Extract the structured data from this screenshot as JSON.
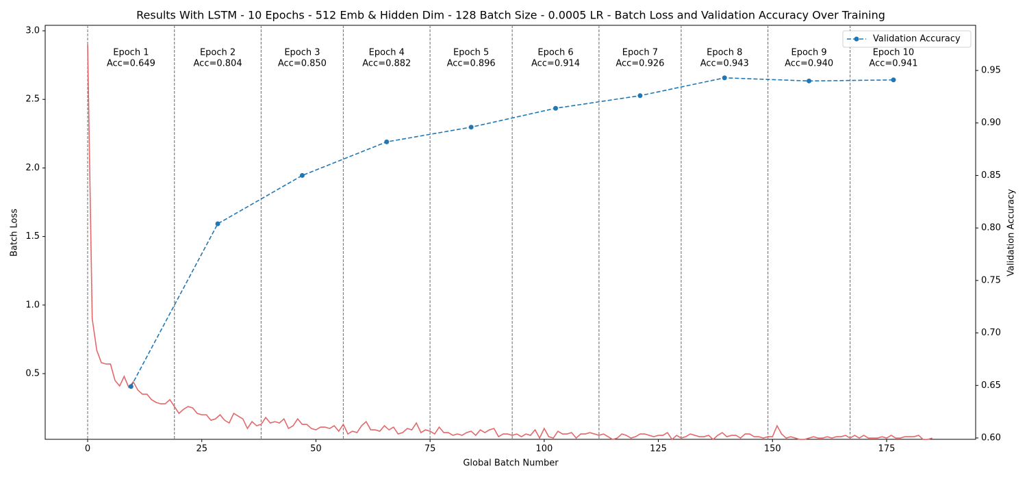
{
  "chart_data": {
    "type": "line",
    "title": "Results With LSTM - 10 Epochs - 512 Emb & Hidden Dim - 128 Batch Size - 0.0005 LR - Batch Loss and Validation Accuracy Over Training",
    "x_label": "Global Batch Number",
    "y_label": "Batch Loss",
    "y2_label": "Validation Accuracy",
    "y_label_color": "#d62728",
    "y2_label_color": "#1f77b4",
    "xlim": [
      -9.3,
      194.5
    ],
    "xticks": [
      0,
      25,
      50,
      75,
      100,
      125,
      150,
      175
    ],
    "ylim": [
      0.021,
      3.04
    ],
    "yticks": [
      0.5,
      1.0,
      1.5,
      2.0,
      2.5,
      3.0
    ],
    "y2lim": [
      0.5987,
      0.993
    ],
    "y2ticks": [
      0.6,
      0.65,
      0.7,
      0.75,
      0.8,
      0.85,
      0.9,
      0.95
    ],
    "legend": "upper right",
    "epoch_boundaries": [
      0,
      19,
      38,
      56,
      75,
      93,
      112,
      130,
      149,
      167
    ],
    "annotations": [
      [
        "Epoch 1",
        "Acc=0.649"
      ],
      [
        "Epoch 2",
        "Acc=0.804"
      ],
      [
        "Epoch 3",
        "Acc=0.850"
      ],
      [
        "Epoch 4",
        "Acc=0.882"
      ],
      [
        "Epoch 5",
        "Acc=0.896"
      ],
      [
        "Epoch 6",
        "Acc=0.914"
      ],
      [
        "Epoch 7",
        "Acc=0.926"
      ],
      [
        "Epoch 8",
        "Acc=0.943"
      ],
      [
        "Epoch 9",
        "Acc=0.940"
      ],
      [
        "Epoch 10",
        "Acc=0.941"
      ]
    ],
    "series": [
      {
        "color": "#e26869",
        "axis": "y",
        "x": [
          0,
          1,
          2,
          3,
          4,
          5,
          6,
          7,
          8,
          9,
          10,
          11,
          12,
          13,
          14,
          15,
          16,
          17,
          18,
          19,
          20,
          21,
          22,
          23,
          24,
          25,
          26,
          27,
          28,
          29,
          30,
          31,
          32,
          33,
          34,
          35,
          36,
          37,
          38,
          39,
          40,
          41,
          42,
          43,
          44,
          45,
          46,
          47,
          48,
          49,
          50,
          51,
          52,
          53,
          54,
          55,
          56,
          57,
          58,
          59,
          60,
          61,
          62,
          63,
          64,
          65,
          66,
          67,
          68,
          69,
          70,
          71,
          72,
          73,
          74,
          75,
          76,
          77,
          78,
          79,
          80,
          81,
          82,
          83,
          84,
          85,
          86,
          87,
          88,
          89,
          90,
          91,
          92,
          93,
          94,
          95,
          96,
          97,
          98,
          99,
          100,
          101,
          102,
          103,
          104,
          105,
          106,
          107,
          108,
          109,
          110,
          111,
          112,
          113,
          114,
          115,
          116,
          117,
          118,
          119,
          120,
          121,
          122,
          123,
          124,
          125,
          126,
          127,
          128,
          129,
          130,
          131,
          132,
          133,
          134,
          135,
          136,
          137,
          138,
          139,
          140,
          141,
          142,
          143,
          144,
          145,
          146,
          147,
          148,
          149,
          150,
          151,
          152,
          153,
          154,
          155,
          156,
          157,
          158,
          159,
          160,
          161,
          162,
          163,
          164,
          165,
          166,
          167,
          168,
          169,
          170,
          171,
          172,
          173,
          174,
          175,
          176,
          177,
          178,
          179,
          180,
          181,
          182,
          183,
          184,
          185
        ],
        "values": [
          2.9,
          0.9,
          0.67,
          0.58,
          0.57,
          0.57,
          0.45,
          0.41,
          0.48,
          0.4,
          0.44,
          0.38,
          0.35,
          0.35,
          0.31,
          0.29,
          0.28,
          0.28,
          0.31,
          0.26,
          0.21,
          0.24,
          0.26,
          0.25,
          0.21,
          0.2,
          0.2,
          0.16,
          0.17,
          0.2,
          0.16,
          0.14,
          0.21,
          0.19,
          0.17,
          0.1,
          0.15,
          0.12,
          0.13,
          0.18,
          0.14,
          0.15,
          0.14,
          0.17,
          0.1,
          0.12,
          0.17,
          0.13,
          0.13,
          0.1,
          0.09,
          0.11,
          0.11,
          0.1,
          0.12,
          0.08,
          0.13,
          0.06,
          0.08,
          0.07,
          0.12,
          0.15,
          0.09,
          0.09,
          0.08,
          0.12,
          0.09,
          0.11,
          0.06,
          0.07,
          0.1,
          0.09,
          0.14,
          0.07,
          0.09,
          0.08,
          0.06,
          0.11,
          0.07,
          0.07,
          0.05,
          0.06,
          0.05,
          0.07,
          0.08,
          0.05,
          0.09,
          0.07,
          0.09,
          0.1,
          0.04,
          0.06,
          0.06,
          0.05,
          0.06,
          0.04,
          0.06,
          0.05,
          0.09,
          0.03,
          0.1,
          0.04,
          0.03,
          0.08,
          0.06,
          0.06,
          0.07,
          0.03,
          0.06,
          0.06,
          0.07,
          0.06,
          0.05,
          0.06,
          0.04,
          0.02,
          0.03,
          0.06,
          0.05,
          0.03,
          0.04,
          0.06,
          0.06,
          0.05,
          0.04,
          0.05,
          0.05,
          0.07,
          0.02,
          0.05,
          0.03,
          0.04,
          0.06,
          0.05,
          0.04,
          0.04,
          0.05,
          0.02,
          0.05,
          0.07,
          0.04,
          0.05,
          0.05,
          0.03,
          0.06,
          0.06,
          0.04,
          0.04,
          0.03,
          0.04,
          0.04,
          0.12,
          0.06,
          0.03,
          0.04,
          0.03,
          0.02,
          0.02,
          0.03,
          0.04,
          0.03,
          0.03,
          0.04,
          0.03,
          0.04,
          0.04,
          0.05,
          0.03,
          0.05,
          0.03,
          0.05,
          0.03,
          0.03,
          0.03,
          0.04,
          0.03,
          0.05,
          0.03,
          0.03,
          0.04,
          0.04,
          0.04,
          0.05,
          0.02,
          0.02,
          0.03
        ]
      },
      {
        "name": "Validation Accuracy",
        "color": "#1f77b4",
        "axis": "y2",
        "x": [
          9.5,
          28.5,
          47,
          65.5,
          84,
          102.5,
          121,
          139.5,
          158,
          176.5
        ],
        "values": [
          0.649,
          0.804,
          0.85,
          0.882,
          0.896,
          0.914,
          0.926,
          0.943,
          0.94,
          0.941
        ]
      }
    ]
  }
}
